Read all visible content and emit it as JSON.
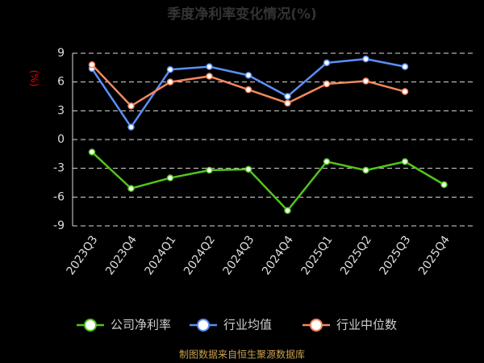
{
  "chart_data": {
    "type": "line",
    "title": "季度净利率变化情况(%)",
    "y_label": "(%)",
    "categories": [
      "2023Q3",
      "2023Q4",
      "2024Q1",
      "2024Q2",
      "2024Q3",
      "2024Q4",
      "2025Q1",
      "2025Q2",
      "2025Q3",
      "2025Q4"
    ],
    "series": [
      {
        "name": "公司净利率",
        "color": "#52c41a",
        "values": [
          -1.3,
          -5.1,
          -4.0,
          -3.2,
          -3.1,
          -7.4,
          -2.3,
          -3.2,
          -2.3,
          -4.7
        ]
      },
      {
        "name": "行业均值",
        "color": "#5b8ff9",
        "values": [
          7.4,
          1.3,
          7.3,
          7.6,
          6.7,
          4.5,
          8.0,
          8.4,
          7.6,
          null
        ]
      },
      {
        "name": "行业中位数",
        "color": "#f6875f",
        "values": [
          7.8,
          3.5,
          6.0,
          6.6,
          5.2,
          3.8,
          5.8,
          6.1,
          5.0,
          null
        ]
      }
    ],
    "ylim": [
      -9,
      9
    ],
    "yticks": [
      -9,
      -6,
      -3,
      0,
      3,
      6,
      9
    ],
    "grid": true,
    "legend": "bottom",
    "source": "制图数据来自恒生聚源数据库"
  }
}
